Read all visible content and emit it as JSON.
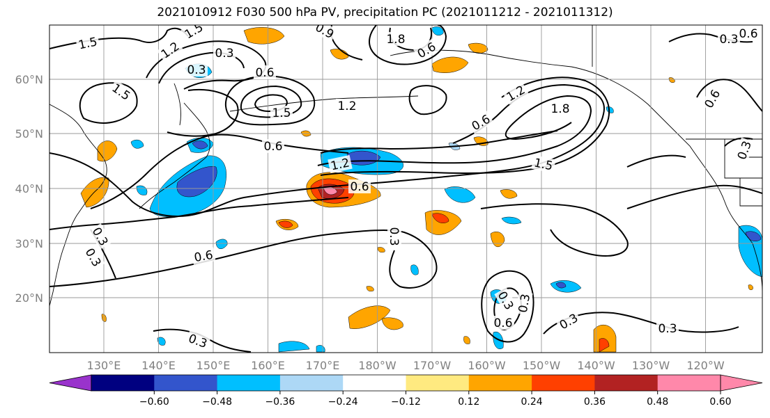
{
  "title": "2021010912 F030 500 hPa PV, precipitation PC (2021011212 - 2021011312)",
  "map": {
    "lat_labels": [
      "60°N",
      "50°N",
      "40°N",
      "30°N",
      "20°N"
    ],
    "lon_labels": [
      "130°E",
      "140°E",
      "150°E",
      "160°E",
      "170°E",
      "180°W",
      "170°W",
      "160°W",
      "150°W",
      "140°W",
      "130°W",
      "120°W"
    ],
    "lon_range": [
      120,
      250
    ],
    "lat_range": [
      10,
      70
    ],
    "grid": true
  },
  "contours": {
    "color": "#000000",
    "labels": [
      "1.5",
      "1.5",
      "1.5",
      "1.2",
      "0.3",
      "0.3",
      "0.9",
      "1.8",
      "0.6",
      "0.3",
      "0.6",
      "0.6",
      "1.5",
      "1.2",
      "0.6",
      "1.8",
      "1.5",
      "0.6",
      "1.2",
      "0.6",
      "1.2",
      "0.3",
      "0.6",
      "0.3",
      "0.3",
      "0.3",
      "0.3",
      "0.6",
      "0.3",
      "0.3",
      "0.3",
      "0.3",
      "0.6"
    ]
  },
  "colorbar": {
    "colors": [
      "#9933cc",
      "#000080",
      "#3355cc",
      "#00bfff",
      "#add8f6",
      "#ffffff",
      "#ffea80",
      "#ffa500",
      "#ff4000",
      "#b22222",
      "#ff88aa",
      "#ff88aa"
    ],
    "extend": "both",
    "tick_labels": [
      "−0.60",
      "−0.48",
      "−0.36",
      "−0.24",
      "−0.12",
      "0.12",
      "0.24",
      "0.36",
      "0.48",
      "0.60"
    ]
  }
}
